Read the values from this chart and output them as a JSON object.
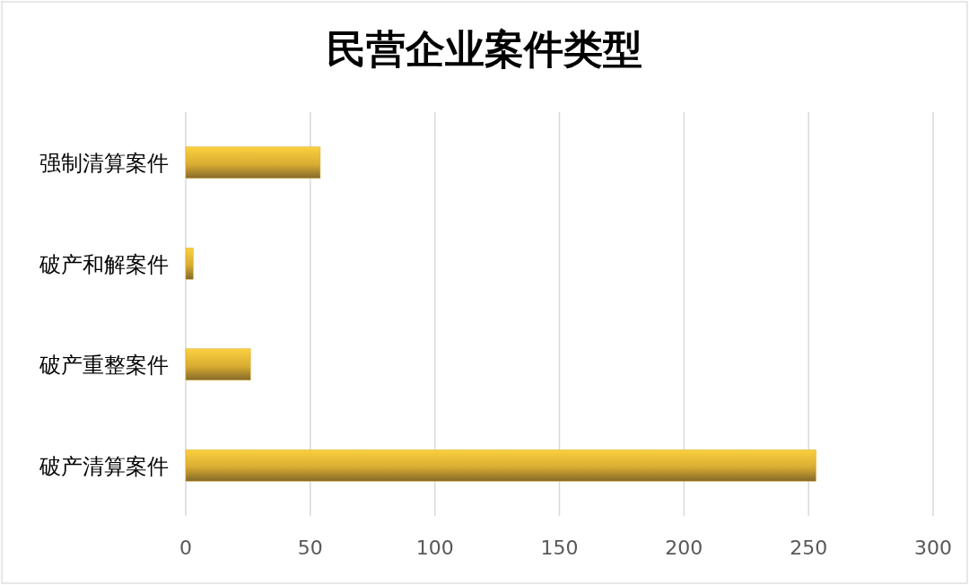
{
  "chart_data": {
    "type": "bar",
    "orientation": "horizontal",
    "title": "民营企业案件类型",
    "categories": [
      "强制清算案件",
      "破产和解案件",
      "破产重整案件",
      "破产清算案件"
    ],
    "values": [
      54,
      3,
      26,
      253
    ],
    "color": "#d9ad32",
    "xlim": [
      0,
      300
    ],
    "xticks": [
      0,
      50,
      100,
      150,
      200,
      250,
      300
    ],
    "grid": "x"
  }
}
